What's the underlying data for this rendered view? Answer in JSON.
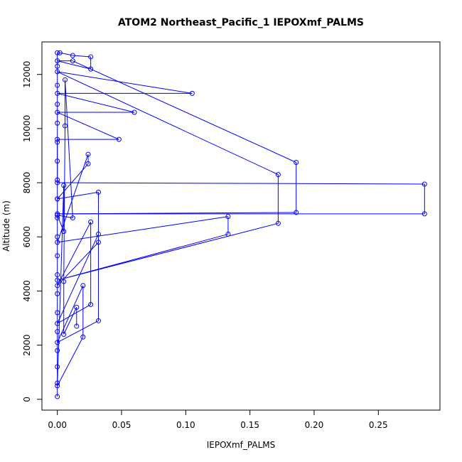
{
  "chart_data": {
    "type": "scatter",
    "title": "ATOM2 Northeast_Pacific_1 IEPOXmf_PALMS",
    "xlabel": "IEPOXmf_PALMS",
    "ylabel": "Altitude (m)",
    "xlim": [
      -0.012,
      0.298
    ],
    "ylim": [
      -400,
      13200
    ],
    "x_ticks": [
      0.0,
      0.05,
      0.1,
      0.15,
      0.2,
      0.25
    ],
    "x_tick_labels": [
      "0.00",
      "0.05",
      "0.10",
      "0.15",
      "0.20",
      "0.25"
    ],
    "y_ticks": [
      0,
      2000,
      4000,
      6000,
      8000,
      10000,
      12000
    ],
    "y_tick_labels": [
      "0",
      "2000",
      "4000",
      "6000",
      "8000",
      "10000",
      "12000"
    ],
    "grid": false,
    "legend": "none",
    "colors": {
      "series": "#0000ff"
    },
    "series": [
      {
        "marker": "open-circle",
        "line": "connected",
        "points": [
          [
            0.0,
            100
          ],
          [
            0.0,
            600
          ],
          [
            0.0,
            1200
          ],
          [
            0.0,
            1800
          ],
          [
            0.0,
            2500
          ],
          [
            0.0,
            3200
          ],
          [
            0.0,
            3900
          ],
          [
            0.0,
            4600
          ],
          [
            0.0,
            5300
          ],
          [
            0.0,
            6000
          ],
          [
            0.0,
            6700
          ],
          [
            0.0,
            7400
          ],
          [
            0.0,
            8100
          ],
          [
            0.0,
            8800
          ],
          [
            0.0,
            9500
          ],
          [
            0.0,
            10200
          ],
          [
            0.0,
            10900
          ],
          [
            0.0,
            11600
          ],
          [
            0.0,
            12300
          ],
          [
            0.0,
            12800
          ],
          [
            0.002,
            12800
          ],
          [
            0.012,
            12700
          ],
          [
            0.026,
            12650
          ],
          [
            0.026,
            12200
          ],
          [
            0.0,
            12500
          ],
          [
            0.012,
            12500
          ],
          [
            0.186,
            8750
          ],
          [
            0.186,
            6900
          ],
          [
            0.0,
            6850
          ],
          [
            0.286,
            6850
          ],
          [
            0.286,
            7950
          ],
          [
            0.0,
            8000
          ],
          [
            0.0,
            9600
          ],
          [
            0.048,
            9600
          ],
          [
            0.0,
            10600
          ],
          [
            0.06,
            10600
          ],
          [
            0.0,
            11300
          ],
          [
            0.105,
            11300
          ],
          [
            0.0,
            12100
          ],
          [
            0.172,
            8300
          ],
          [
            0.172,
            6500
          ],
          [
            0.0,
            4400
          ],
          [
            0.133,
            6100
          ],
          [
            0.133,
            6750
          ],
          [
            0.0,
            5800
          ],
          [
            0.024,
            9050
          ],
          [
            0.024,
            8700
          ],
          [
            0.0,
            7400
          ],
          [
            0.032,
            7650
          ],
          [
            0.032,
            5800
          ],
          [
            0.0,
            4200
          ],
          [
            0.026,
            6550
          ],
          [
            0.026,
            3500
          ],
          [
            0.0,
            2800
          ],
          [
            0.032,
            6100
          ],
          [
            0.032,
            2900
          ],
          [
            0.0,
            2100
          ],
          [
            0.02,
            4200
          ],
          [
            0.02,
            2300
          ],
          [
            0.0,
            500
          ],
          [
            0.005,
            7900
          ],
          [
            0.005,
            6200
          ],
          [
            0.0,
            6800
          ],
          [
            0.012,
            6700
          ],
          [
            0.006,
            11800
          ],
          [
            0.006,
            10100
          ],
          [
            0.005,
            4350
          ],
          [
            0.005,
            2400
          ],
          [
            0.015,
            3400
          ],
          [
            0.015,
            2700
          ]
        ]
      }
    ]
  }
}
